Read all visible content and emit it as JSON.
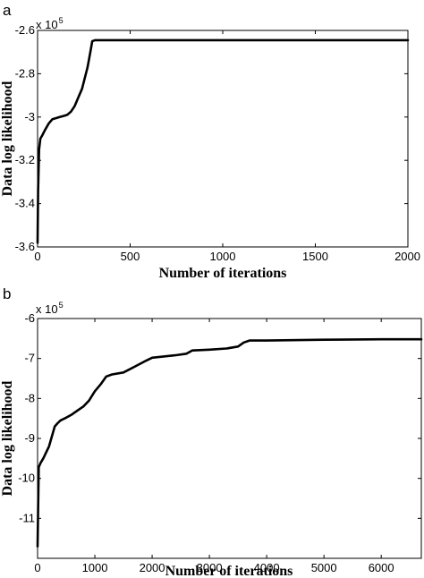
{
  "chart_data": [
    {
      "type": "line",
      "panel_label": "a",
      "xlabel": "Number of iterations",
      "ylabel": "Data log likelihood",
      "y_multiplier": {
        "base": "x 10",
        "exponent": "5"
      },
      "xlim": [
        0,
        2000
      ],
      "ylim": [
        -3.6,
        -2.6
      ],
      "x_ticks": [
        0,
        500,
        1000,
        1500,
        2000
      ],
      "x_tick_labels": [
        "0",
        "500",
        "1000",
        "1500",
        "2000"
      ],
      "y_ticks": [
        -3.6,
        -3.4,
        -3.2,
        -3.0,
        -2.8,
        -2.6
      ],
      "y_tick_labels": [
        "-3.6",
        "-3.4",
        "-3.2",
        "-3",
        "-2.8",
        "-2.6"
      ],
      "grid": false,
      "series": [
        {
          "x": [
            0,
            3,
            8,
            15,
            25,
            40,
            60,
            80,
            100,
            120,
            140,
            160,
            180,
            200,
            220,
            240,
            255,
            270,
            285,
            295,
            310,
            400,
            600,
            1000,
            1500,
            2000
          ],
          "y": [
            -3.58,
            -3.34,
            -3.15,
            -3.1,
            -3.085,
            -3.06,
            -3.03,
            -3.01,
            -3.005,
            -3.0,
            -2.995,
            -2.99,
            -2.975,
            -2.95,
            -2.91,
            -2.87,
            -2.82,
            -2.77,
            -2.7,
            -2.65,
            -2.645,
            -2.645,
            -2.645,
            -2.645,
            -2.645,
            -2.645
          ]
        }
      ]
    },
    {
      "type": "line",
      "panel_label": "b",
      "xlabel": "Number of iterations",
      "ylabel": "Data log likelihood",
      "y_multiplier": {
        "base": "x 10",
        "exponent": "5"
      },
      "xlim": [
        0,
        6700
      ],
      "ylim": [
        -12,
        -6
      ],
      "x_ticks": [
        0,
        1000,
        2000,
        3000,
        4000,
        5000,
        6000
      ],
      "x_tick_labels": [
        "0",
        "1000",
        "2000",
        "3000",
        "4000",
        "5000",
        "6000"
      ],
      "y_ticks": [
        -12,
        -11,
        -10,
        -9,
        -8,
        -7,
        -6
      ],
      "y_tick_labels": [
        "",
        "-11",
        "-10",
        "-9",
        "-8",
        "-7",
        "-6"
      ],
      "grid": false,
      "series": [
        {
          "x": [
            0,
            20,
            50,
            100,
            200,
            300,
            350,
            400,
            500,
            600,
            700,
            800,
            900,
            1000,
            1100,
            1200,
            1300,
            1500,
            1700,
            1900,
            2000,
            2200,
            2400,
            2600,
            2700,
            3000,
            3300,
            3500,
            3600,
            3700,
            4000,
            5000,
            6000,
            6700
          ],
          "y": [
            -11.7,
            -9.72,
            -9.62,
            -9.5,
            -9.2,
            -8.7,
            -8.62,
            -8.55,
            -8.48,
            -8.4,
            -8.3,
            -8.2,
            -8.05,
            -7.82,
            -7.65,
            -7.45,
            -7.4,
            -7.35,
            -7.2,
            -7.05,
            -6.98,
            -6.95,
            -6.92,
            -6.88,
            -6.8,
            -6.78,
            -6.75,
            -6.7,
            -6.6,
            -6.55,
            -6.55,
            -6.53,
            -6.52,
            -6.52
          ]
        }
      ]
    }
  ]
}
